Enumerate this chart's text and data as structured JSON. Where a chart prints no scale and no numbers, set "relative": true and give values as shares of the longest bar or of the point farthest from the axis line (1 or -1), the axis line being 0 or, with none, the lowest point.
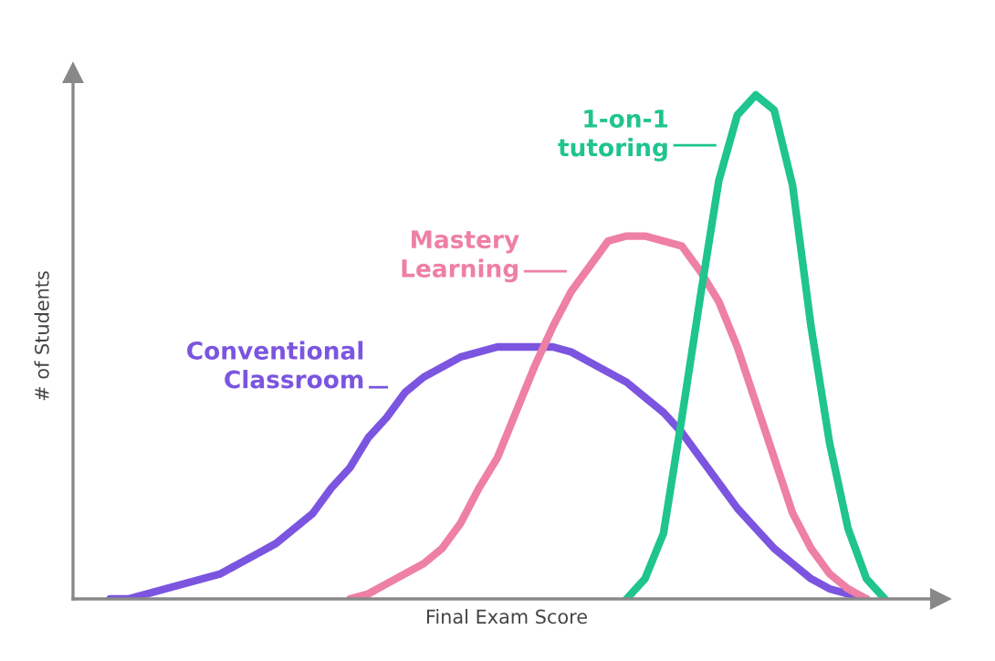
{
  "chart_data": {
    "type": "line",
    "relative": true,
    "legend": "top",
    "xlabel": "Final Exam Score",
    "ylabel": "# of Students",
    "marker": "none",
    "line_style": "solid",
    "categories": [
      null,
      null,
      null,
      null,
      null,
      null,
      null,
      null,
      null,
      null,
      null,
      null,
      null,
      null,
      null,
      null,
      null,
      null,
      null,
      null,
      null,
      null,
      null,
      null,
      null,
      null,
      null,
      null,
      null,
      null,
      null,
      null,
      null,
      null,
      null,
      null,
      null,
      null,
      null,
      null,
      null,
      null,
      null,
      null,
      null,
      null,
      null,
      null
    ],
    "series": [
      {
        "name": "Conventional\nClassroom",
        "color": "#7b55e0",
        "values": [
          null,
          null,
          0,
          0.0,
          0.01,
          0.02,
          0.03,
          0.04,
          0.05,
          0.07,
          0.09,
          0.11,
          0.14,
          0.17,
          0.22,
          0.26,
          0.32,
          0.36,
          0.41,
          0.44,
          0.46,
          0.48,
          0.49,
          0.5,
          0.5,
          0.5,
          0.5,
          0.49,
          0.47,
          0.45,
          0.43,
          0.4,
          0.37,
          0.33,
          0.28,
          0.23,
          0.18,
          0.14,
          0.1,
          0.07,
          0.04,
          0.02,
          0.01,
          0,
          null,
          null,
          null,
          null
        ]
      },
      {
        "name": "Mastery\nLearning",
        "color": "#ee7fa5",
        "values": [
          null,
          null,
          null,
          null,
          null,
          null,
          null,
          null,
          null,
          null,
          null,
          null,
          null,
          null,
          null,
          0,
          0.01,
          0.03,
          0.05,
          0.07,
          0.1,
          0.15,
          0.22,
          0.28,
          0.37,
          0.46,
          0.54,
          0.61,
          0.66,
          0.71,
          0.72,
          0.72,
          0.71,
          0.7,
          0.65,
          0.59,
          0.5,
          0.39,
          0.28,
          0.17,
          0.1,
          0.05,
          0.02,
          0,
          null,
          null,
          null,
          null
        ]
      },
      {
        "name": "1-on-1\ntutoring",
        "color": "#1fc48f",
        "values": [
          null,
          null,
          null,
          null,
          null,
          null,
          null,
          null,
          null,
          null,
          null,
          null,
          null,
          null,
          null,
          null,
          null,
          null,
          null,
          null,
          null,
          null,
          null,
          null,
          null,
          null,
          null,
          null,
          null,
          null,
          0,
          0.04,
          0.13,
          0.36,
          0.6,
          0.83,
          0.96,
          1,
          0.97,
          0.82,
          0.54,
          0.31,
          0.14,
          0.04,
          0,
          null,
          null,
          null
        ]
      }
    ]
  }
}
